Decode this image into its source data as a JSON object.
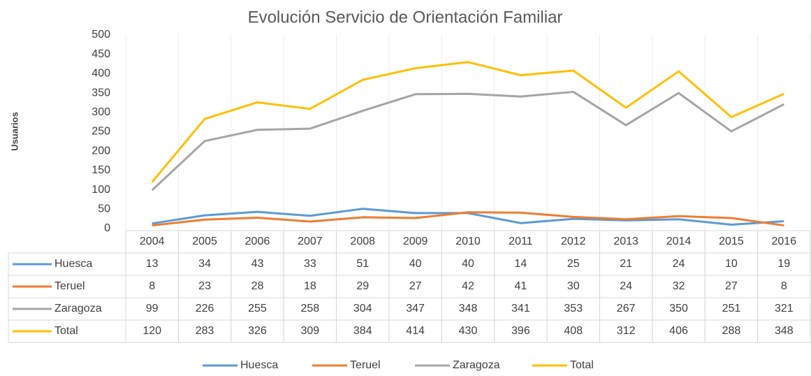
{
  "chart_data": {
    "type": "line",
    "title": "Evolución Servicio de Orientación Familiar",
    "y_label": "Usuarios",
    "categories": [
      "2004",
      "2005",
      "2006",
      "2007",
      "2008",
      "2009",
      "2010",
      "2011",
      "2012",
      "2013",
      "2014",
      "2015",
      "2016"
    ],
    "series": [
      {
        "name": "Huesca",
        "color": "#5b9bd5",
        "values": [
          13,
          34,
          43,
          33,
          51,
          40,
          40,
          14,
          25,
          21,
          24,
          10,
          19
        ]
      },
      {
        "name": "Teruel",
        "color": "#ed7d31",
        "values": [
          8,
          23,
          28,
          18,
          29,
          27,
          42,
          41,
          30,
          24,
          32,
          27,
          8
        ]
      },
      {
        "name": "Zaragoza",
        "color": "#a5a5a5",
        "values": [
          99,
          226,
          255,
          258,
          304,
          347,
          348,
          341,
          353,
          267,
          350,
          251,
          321
        ]
      },
      {
        "name": "Total",
        "color": "#ffc000",
        "values": [
          120,
          283,
          326,
          309,
          384,
          414,
          430,
          396,
          408,
          312,
          406,
          288,
          348
        ]
      }
    ],
    "ylim": [
      0,
      500
    ],
    "yticks": [
      0,
      50,
      100,
      150,
      200,
      250,
      300,
      350,
      400,
      450,
      500
    ],
    "grid": false,
    "legend": "bottom"
  }
}
